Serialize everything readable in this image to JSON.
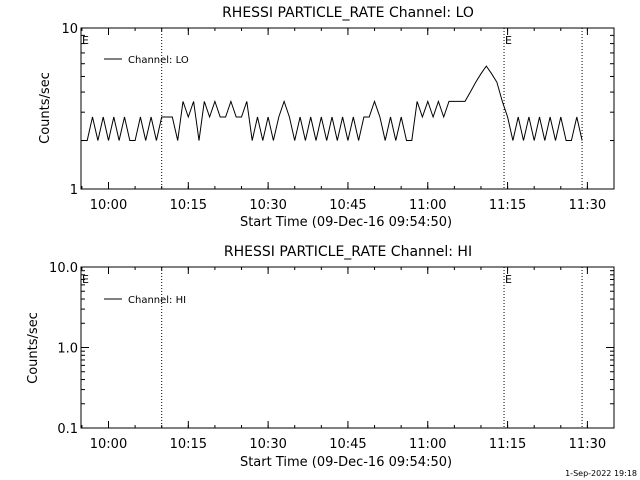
{
  "footer": {
    "timestamp": "1-Sep-2022 19:18"
  },
  "chart_data": [
    {
      "type": "line",
      "title": "RHESSI PARTICLE_RATE Channel: LO",
      "xlabel": "Start Time (09-Dec-16 09:54:50)",
      "ylabel": "Counts/sec",
      "yscale": "log",
      "ylim": [
        1,
        10
      ],
      "ytick_labels": [
        "1",
        "10"
      ],
      "xlim": [
        "09:54:50",
        "11:35:00"
      ],
      "xtick_labels": [
        "10:00",
        "10:15",
        "10:30",
        "10:45",
        "11:00",
        "11:15",
        "11:30"
      ],
      "grid": false,
      "legend": {
        "position": "top-left",
        "label": "Channel: LO"
      },
      "event_lines": [
        {
          "time": "10:10:00",
          "flag": ""
        },
        {
          "time": "11:14:20",
          "flag": "E"
        },
        {
          "time": "11:29:00",
          "flag": ""
        }
      ],
      "left_flag": "E",
      "series": [
        {
          "color": "#000000",
          "points": [
            [
              "09:55",
              2.0
            ],
            [
              "09:56",
              2.0
            ],
            [
              "09:57",
              2.8
            ],
            [
              "09:58",
              2.0
            ],
            [
              "09:59",
              2.8
            ],
            [
              "10:00",
              2.0
            ],
            [
              "10:01",
              2.8
            ],
            [
              "10:02",
              2.0
            ],
            [
              "10:03",
              2.8
            ],
            [
              "10:04",
              2.0
            ],
            [
              "10:05",
              2.0
            ],
            [
              "10:06",
              2.8
            ],
            [
              "10:07",
              2.0
            ],
            [
              "10:08",
              2.8
            ],
            [
              "10:09",
              2.0
            ],
            [
              "10:10",
              2.8
            ],
            [
              "10:11",
              2.8
            ],
            [
              "10:12",
              2.8
            ],
            [
              "10:13",
              2.0
            ],
            [
              "10:14",
              3.5
            ],
            [
              "10:15",
              2.8
            ],
            [
              "10:16",
              3.5
            ],
            [
              "10:17",
              2.0
            ],
            [
              "10:18",
              3.5
            ],
            [
              "10:19",
              2.8
            ],
            [
              "10:20",
              3.5
            ],
            [
              "10:21",
              2.8
            ],
            [
              "10:22",
              2.8
            ],
            [
              "10:23",
              3.5
            ],
            [
              "10:24",
              2.8
            ],
            [
              "10:25",
              2.8
            ],
            [
              "10:26",
              3.5
            ],
            [
              "10:27",
              2.0
            ],
            [
              "10:28",
              2.8
            ],
            [
              "10:29",
              2.0
            ],
            [
              "10:30",
              2.8
            ],
            [
              "10:31",
              2.0
            ],
            [
              "10:32",
              2.8
            ],
            [
              "10:33",
              3.5
            ],
            [
              "10:34",
              2.8
            ],
            [
              "10:35",
              2.0
            ],
            [
              "10:36",
              2.8
            ],
            [
              "10:37",
              2.0
            ],
            [
              "10:38",
              2.8
            ],
            [
              "10:39",
              2.0
            ],
            [
              "10:40",
              2.8
            ],
            [
              "10:41",
              2.0
            ],
            [
              "10:42",
              2.8
            ],
            [
              "10:43",
              2.0
            ],
            [
              "10:44",
              2.8
            ],
            [
              "10:45",
              2.0
            ],
            [
              "10:46",
              2.8
            ],
            [
              "10:47",
              2.0
            ],
            [
              "10:48",
              2.8
            ],
            [
              "10:49",
              2.8
            ],
            [
              "10:50",
              3.5
            ],
            [
              "10:51",
              2.8
            ],
            [
              "10:52",
              2.0
            ],
            [
              "10:53",
              2.8
            ],
            [
              "10:54",
              2.0
            ],
            [
              "10:55",
              2.8
            ],
            [
              "10:56",
              2.0
            ],
            [
              "10:57",
              2.0
            ],
            [
              "10:58",
              3.5
            ],
            [
              "10:59",
              2.8
            ],
            [
              "11:00",
              3.5
            ],
            [
              "11:01",
              2.8
            ],
            [
              "11:02",
              3.5
            ],
            [
              "11:03",
              2.8
            ],
            [
              "11:04",
              3.5
            ],
            [
              "11:05",
              3.5
            ],
            [
              "11:06",
              3.5
            ],
            [
              "11:07",
              3.5
            ],
            [
              "11:08",
              4.0
            ],
            [
              "11:09",
              4.6
            ],
            [
              "11:10",
              5.2
            ],
            [
              "11:11",
              5.8
            ],
            [
              "11:12",
              5.2
            ],
            [
              "11:13",
              4.6
            ],
            [
              "11:14",
              3.5
            ],
            [
              "11:15",
              2.8
            ],
            [
              "11:16",
              2.0
            ],
            [
              "11:17",
              2.8
            ],
            [
              "11:18",
              2.0
            ],
            [
              "11:19",
              2.8
            ],
            [
              "11:20",
              2.0
            ],
            [
              "11:21",
              2.8
            ],
            [
              "11:22",
              2.0
            ],
            [
              "11:23",
              2.8
            ],
            [
              "11:24",
              2.0
            ],
            [
              "11:25",
              2.8
            ],
            [
              "11:26",
              2.0
            ],
            [
              "11:27",
              2.0
            ],
            [
              "11:28",
              2.8
            ],
            [
              "11:29",
              2.0
            ]
          ]
        }
      ]
    },
    {
      "type": "line",
      "title": "RHESSI PARTICLE_RATE Channel: HI",
      "xlabel": "Start Time (09-Dec-16 09:54:50)",
      "ylabel": "Counts/sec",
      "yscale": "log",
      "ylim": [
        0.1,
        10
      ],
      "ytick_labels": [
        "0.1",
        "1.0",
        "10.0"
      ],
      "xlim": [
        "09:54:50",
        "11:35:00"
      ],
      "xtick_labels": [
        "10:00",
        "10:15",
        "10:30",
        "10:45",
        "11:00",
        "11:15",
        "11:30"
      ],
      "grid": false,
      "legend": {
        "position": "top-left",
        "label": "Channel: HI"
      },
      "event_lines": [
        {
          "time": "10:10:00",
          "flag": ""
        },
        {
          "time": "11:14:20",
          "flag": "E"
        },
        {
          "time": "11:29:00",
          "flag": ""
        }
      ],
      "left_flag": "E",
      "series": []
    }
  ]
}
